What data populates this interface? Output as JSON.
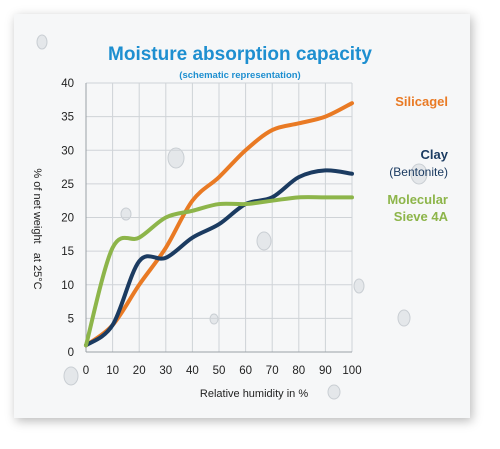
{
  "chart_data": {
    "type": "line",
    "title": "Moisture absorption capacity",
    "subtitle": "(schematic representation)",
    "xlabel": "Relative humidity in %",
    "ylabel": "% of net weight   at 25°C",
    "xlim": [
      0,
      100
    ],
    "ylim": [
      0,
      40
    ],
    "x_ticks": [
      0,
      10,
      20,
      30,
      40,
      50,
      60,
      70,
      80,
      90,
      100
    ],
    "y_ticks": [
      0,
      5,
      10,
      15,
      20,
      25,
      30,
      35,
      40
    ],
    "grid": true,
    "series": [
      {
        "name": "Silicagel",
        "color": "#e97a24",
        "points": [
          [
            0,
            1
          ],
          [
            10,
            4
          ],
          [
            20,
            10
          ],
          [
            30,
            15.5
          ],
          [
            40,
            22.5
          ],
          [
            50,
            26
          ],
          [
            60,
            30
          ],
          [
            70,
            33
          ],
          [
            80,
            34
          ],
          [
            90,
            35
          ],
          [
            100,
            37
          ]
        ]
      },
      {
        "name": "Clay",
        "name_line2": "(Bentonite)",
        "color": "#1b3b61",
        "points": [
          [
            0,
            1
          ],
          [
            10,
            4
          ],
          [
            20,
            13.5
          ],
          [
            30,
            14
          ],
          [
            40,
            17
          ],
          [
            50,
            19
          ],
          [
            60,
            22
          ],
          [
            70,
            23
          ],
          [
            80,
            26
          ],
          [
            90,
            27
          ],
          [
            100,
            26.5
          ]
        ]
      },
      {
        "name": "Molecular",
        "name_line2": "Sieve 4A",
        "color": "#8db54a",
        "points": [
          [
            0,
            1
          ],
          [
            10,
            15.5
          ],
          [
            20,
            17
          ],
          [
            30,
            20
          ],
          [
            40,
            21
          ],
          [
            50,
            22
          ],
          [
            60,
            22
          ],
          [
            70,
            22.5
          ],
          [
            80,
            23
          ],
          [
            90,
            23
          ],
          [
            100,
            23
          ]
        ]
      }
    ]
  }
}
